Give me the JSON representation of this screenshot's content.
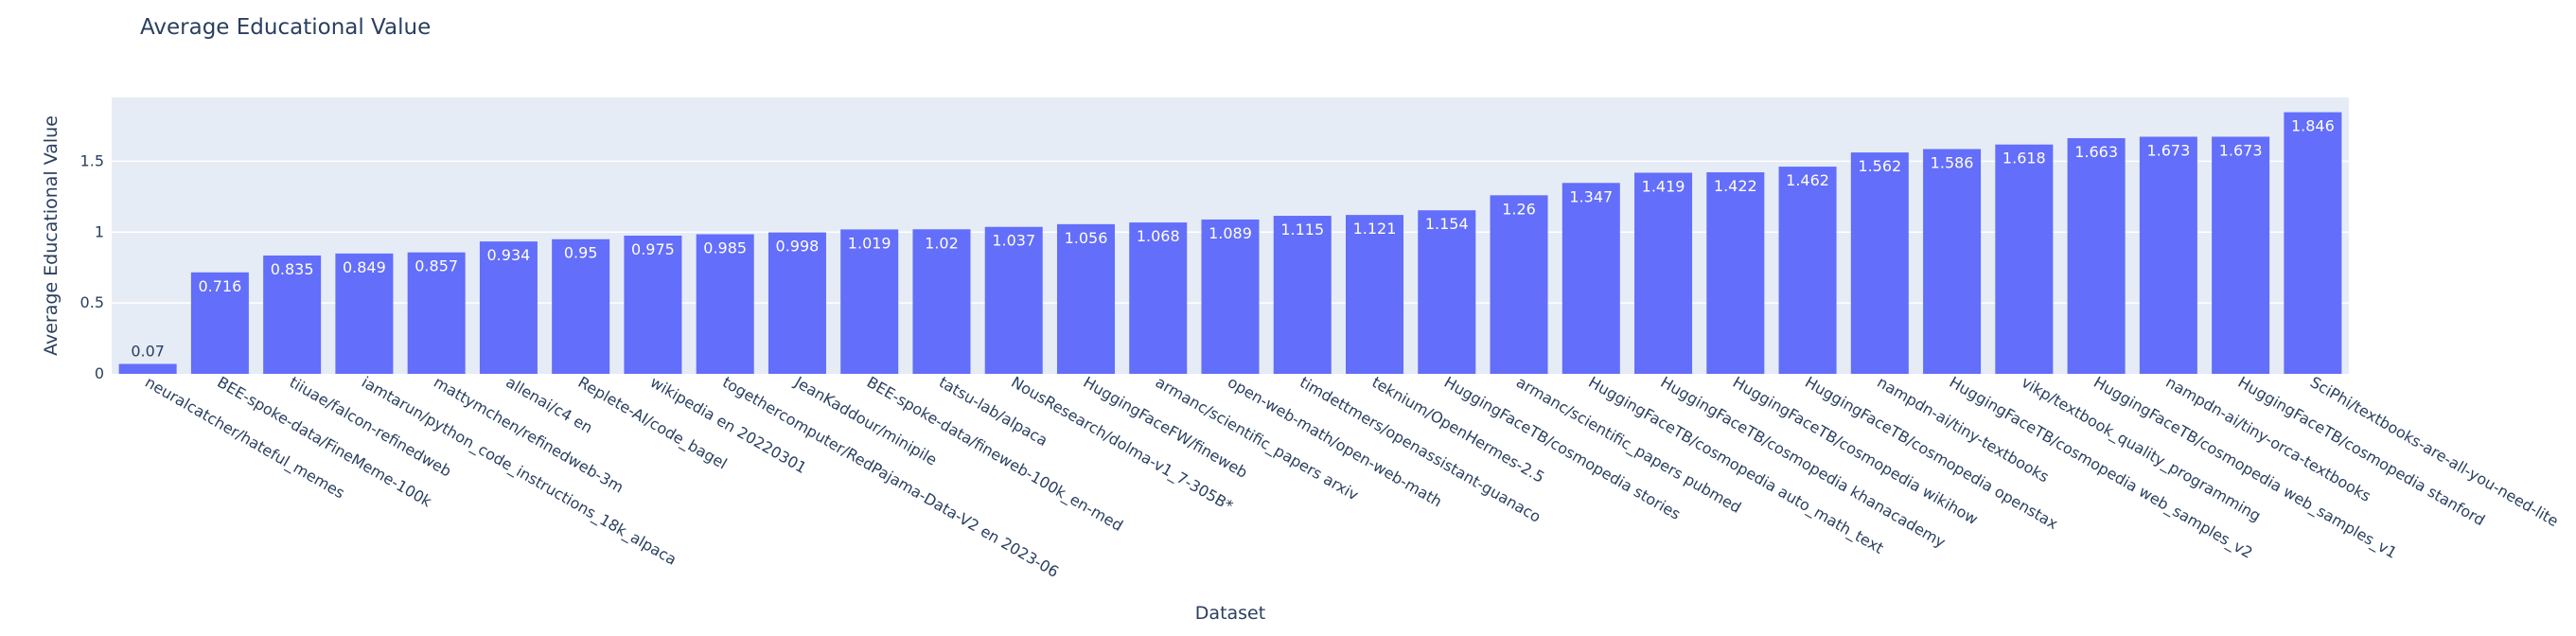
{
  "chart_data": {
    "type": "bar",
    "title": "Average Educational Value",
    "xlabel": "Dataset",
    "ylabel": "Average Educational Value",
    "ylim": [
      0,
      1.95
    ],
    "yticks": [
      0,
      0.5,
      1,
      1.5
    ],
    "ytick_labels": [
      "0",
      "0.5",
      "1",
      "1.5"
    ],
    "grid": true,
    "legend": "none",
    "bar_color": "#636efa",
    "plot_bg": "#e5ecf6",
    "categories": [
      "neuralcatcher/hateful_memes",
      "BEE-spoke-data/FineMeme-100k",
      "tiiuae/falcon-refinedweb",
      "iamtarun/python_code_instructions_18k_alpaca",
      "mattymchen/refinedweb-3m",
      "allenai/c4 en",
      "Replete-AI/code_bagel",
      "wikipedia en 20220301",
      "togethercomputer/RedPajama-Data-V2 en 2023-06",
      "JeanKaddour/minipile",
      "BEE-spoke-data/fineweb-100k_en-med",
      "tatsu-lab/alpaca",
      "NousResearch/dolma-v1_7-305B*",
      "HuggingFaceFW/fineweb",
      "armanc/scientific_papers arxiv",
      "open-web-math/open-web-math",
      "timdettmers/openassistant-guanaco",
      "teknium/OpenHermes-2.5",
      "HuggingFaceTB/cosmopedia stories",
      "armanc/scientific_papers pubmed",
      "HuggingFaceTB/cosmopedia auto_math_text",
      "HuggingFaceTB/cosmopedia khanacademy",
      "HuggingFaceTB/cosmopedia wikihow",
      "HuggingFaceTB/cosmopedia openstax",
      "nampdn-ai/tiny-textbooks",
      "HuggingFaceTB/cosmopedia web_samples_v2",
      "vikp/textbook_quality_programming",
      "HuggingFaceTB/cosmopedia web_samples_v1",
      "nampdn-ai/tiny-orca-textbooks",
      "HuggingFaceTB/cosmopedia stanford",
      "SciPhi/textbooks-are-all-you-need-lite"
    ],
    "values": [
      0.07,
      0.716,
      0.835,
      0.849,
      0.857,
      0.934,
      0.95,
      0.975,
      0.985,
      0.998,
      1.019,
      1.02,
      1.037,
      1.056,
      1.068,
      1.089,
      1.115,
      1.121,
      1.154,
      1.26,
      1.347,
      1.419,
      1.422,
      1.462,
      1.562,
      1.586,
      1.618,
      1.663,
      1.673,
      1.673,
      1.846
    ],
    "value_labels": [
      "0.07",
      "0.716",
      "0.835",
      "0.849",
      "0.857",
      "0.934",
      "0.95",
      "0.975",
      "0.985",
      "0.998",
      "1.019",
      "1.02",
      "1.037",
      "1.056",
      "1.068",
      "1.089",
      "1.115",
      "1.121",
      "1.154",
      "1.26",
      "1.347",
      "1.419",
      "1.422",
      "1.462",
      "1.562",
      "1.586",
      "1.618",
      "1.663",
      "1.673",
      "1.673",
      "1.846"
    ]
  }
}
